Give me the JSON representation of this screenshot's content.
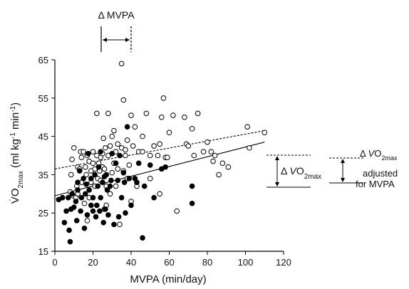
{
  "chart_data": {
    "type": "scatter",
    "xlabel": "MVPA (min/day)",
    "ylabel": "V̇O2max (ml kg-1 min-1)",
    "xlim": [
      0,
      120
    ],
    "ylim": [
      15,
      65
    ],
    "xticks": [
      0,
      20,
      40,
      60,
      80,
      100,
      120
    ],
    "yticks": [
      15,
      25,
      35,
      45,
      55,
      65
    ],
    "xtick_labels": [
      "0",
      "20",
      "40",
      "60",
      "80",
      "100",
      "120"
    ],
    "ytick_labels": [
      "15",
      "25",
      "35",
      "45",
      "55",
      "65"
    ],
    "grid": false,
    "series": [
      {
        "marker": "open-circle",
        "color": "#000000",
        "points": [
          [
            8,
            30.5
          ],
          [
            8.5,
            35
          ],
          [
            9,
            39
          ],
          [
            9.5,
            29.5
          ],
          [
            10,
            42
          ],
          [
            11,
            29
          ],
          [
            11.5,
            32
          ],
          [
            12,
            30
          ],
          [
            12,
            37
          ],
          [
            13,
            36.5
          ],
          [
            13.5,
            41
          ],
          [
            14,
            39.5
          ],
          [
            14,
            33
          ],
          [
            15,
            41
          ],
          [
            15.5,
            27.5
          ],
          [
            16,
            37
          ],
          [
            16.5,
            35
          ],
          [
            17,
            23
          ],
          [
            17,
            40
          ],
          [
            18,
            38.5
          ],
          [
            18,
            29
          ],
          [
            19,
            33
          ],
          [
            19,
            36
          ],
          [
            20,
            38
          ],
          [
            20,
            41
          ],
          [
            21,
            36.5
          ],
          [
            21,
            32
          ],
          [
            22,
            51
          ],
          [
            22,
            40
          ],
          [
            22.5,
            34
          ],
          [
            23,
            38
          ],
          [
            23.5,
            36
          ],
          [
            24,
            33.5
          ],
          [
            24,
            39.5
          ],
          [
            25,
            37
          ],
          [
            25,
            40.5
          ],
          [
            25.5,
            44.5
          ],
          [
            26,
            36.5
          ],
          [
            26,
            26
          ],
          [
            26.5,
            42
          ],
          [
            27,
            27
          ],
          [
            27,
            32
          ],
          [
            28,
            40
          ],
          [
            28,
            51
          ],
          [
            29,
            42.5
          ],
          [
            29,
            30
          ],
          [
            30,
            35.5
          ],
          [
            30,
            45
          ],
          [
            31,
            38
          ],
          [
            31,
            46.5
          ],
          [
            32,
            32
          ],
          [
            32,
            41
          ],
          [
            33,
            43
          ],
          [
            33,
            36.5
          ],
          [
            34,
            22
          ],
          [
            35,
            64
          ],
          [
            35,
            42
          ],
          [
            36,
            54.5
          ],
          [
            36,
            36
          ],
          [
            37,
            41.5
          ],
          [
            37,
            40
          ],
          [
            38,
            34
          ],
          [
            38,
            44
          ],
          [
            39,
            37.5
          ],
          [
            40,
            28
          ],
          [
            40,
            50.5
          ],
          [
            41,
            42.5
          ],
          [
            42,
            47.5
          ],
          [
            43,
            32
          ],
          [
            44,
            41
          ],
          [
            46,
            41
          ],
          [
            46,
            45
          ],
          [
            48,
            51
          ],
          [
            50,
            34
          ],
          [
            50,
            40
          ],
          [
            52,
            42.5
          ],
          [
            54,
            40
          ],
          [
            55,
            43
          ],
          [
            55,
            30
          ],
          [
            56,
            50
          ],
          [
            57,
            55
          ],
          [
            58,
            39.5
          ],
          [
            59,
            39.5
          ],
          [
            60,
            46
          ],
          [
            62,
            50.5
          ],
          [
            64,
            25.5
          ],
          [
            68,
            50
          ],
          [
            69,
            43
          ],
          [
            70,
            42.5
          ],
          [
            72,
            47
          ],
          [
            73,
            40
          ],
          [
            75,
            51
          ],
          [
            78,
            41
          ],
          [
            80,
            43.5
          ],
          [
            82,
            41
          ],
          [
            83,
            38.5
          ],
          [
            84,
            40
          ],
          [
            86,
            35
          ],
          [
            88,
            38
          ],
          [
            91,
            37
          ],
          [
            101,
            47.5
          ],
          [
            102,
            42
          ],
          [
            110,
            46
          ]
        ]
      },
      {
        "marker": "filled-circle",
        "color": "#000000",
        "points": [
          [
            2,
            28.5
          ],
          [
            4,
            29
          ],
          [
            5,
            22.5
          ],
          [
            6,
            25.5
          ],
          [
            7,
            29
          ],
          [
            7.5,
            20.5
          ],
          [
            8,
            17.5
          ],
          [
            8.5,
            26
          ],
          [
            9,
            30
          ],
          [
            10,
            26.5
          ],
          [
            11,
            28
          ],
          [
            11.5,
            23
          ],
          [
            12,
            33
          ],
          [
            12,
            31
          ],
          [
            13,
            36
          ],
          [
            13.5,
            25.5
          ],
          [
            14,
            29
          ],
          [
            15,
            34
          ],
          [
            15.5,
            21
          ],
          [
            16,
            30
          ],
          [
            16.5,
            32.5
          ],
          [
            17,
            24.5
          ],
          [
            17.5,
            40.5
          ],
          [
            18,
            31
          ],
          [
            19,
            27
          ],
          [
            19,
            34
          ],
          [
            20,
            25.5
          ],
          [
            20,
            29
          ],
          [
            21,
            35
          ],
          [
            21.5,
            24
          ],
          [
            22,
            27
          ],
          [
            22.5,
            32
          ],
          [
            23,
            37
          ],
          [
            23.5,
            25.5
          ],
          [
            24,
            41
          ],
          [
            24,
            29
          ],
          [
            25,
            33
          ],
          [
            25.5,
            22.5
          ],
          [
            26,
            34.5
          ],
          [
            26.5,
            26
          ],
          [
            27,
            35
          ],
          [
            27.5,
            31
          ],
          [
            28,
            24.5
          ],
          [
            29,
            32
          ],
          [
            29.5,
            33.5
          ],
          [
            30,
            40.5
          ],
          [
            31,
            22
          ],
          [
            32,
            38
          ],
          [
            33,
            33.5
          ],
          [
            33.5,
            24
          ],
          [
            34,
            40
          ],
          [
            35,
            29
          ],
          [
            36,
            35.5
          ],
          [
            36.5,
            33
          ],
          [
            37,
            25
          ],
          [
            38,
            47.5
          ],
          [
            39,
            34
          ],
          [
            40,
            27
          ],
          [
            42,
            34
          ],
          [
            43,
            33
          ],
          [
            44,
            38
          ],
          [
            46,
            18.5
          ],
          [
            47,
            32
          ],
          [
            50,
            37.5
          ],
          [
            52,
            29
          ],
          [
            56,
            36.5
          ],
          [
            58,
            37
          ],
          [
            72,
            32
          ],
          [
            72,
            27.5
          ]
        ]
      }
    ],
    "fit_lines": [
      {
        "style": "dashed",
        "x": [
          0,
          110
        ],
        "y": [
          36.5,
          46.5
        ]
      },
      {
        "style": "solid",
        "x": [
          0,
          110
        ],
        "y": [
          29.5,
          43.5
        ]
      }
    ],
    "annotations": {
      "delta_mvpa": "Δ MVPA",
      "delta_vo2_prefix": "Δ ",
      "vo2_v": "V",
      "vo2_o": "O",
      "vo2_sub": "2max",
      "adjusted_line1": "adjusted",
      "adjusted_line2": "for MVPA"
    }
  }
}
